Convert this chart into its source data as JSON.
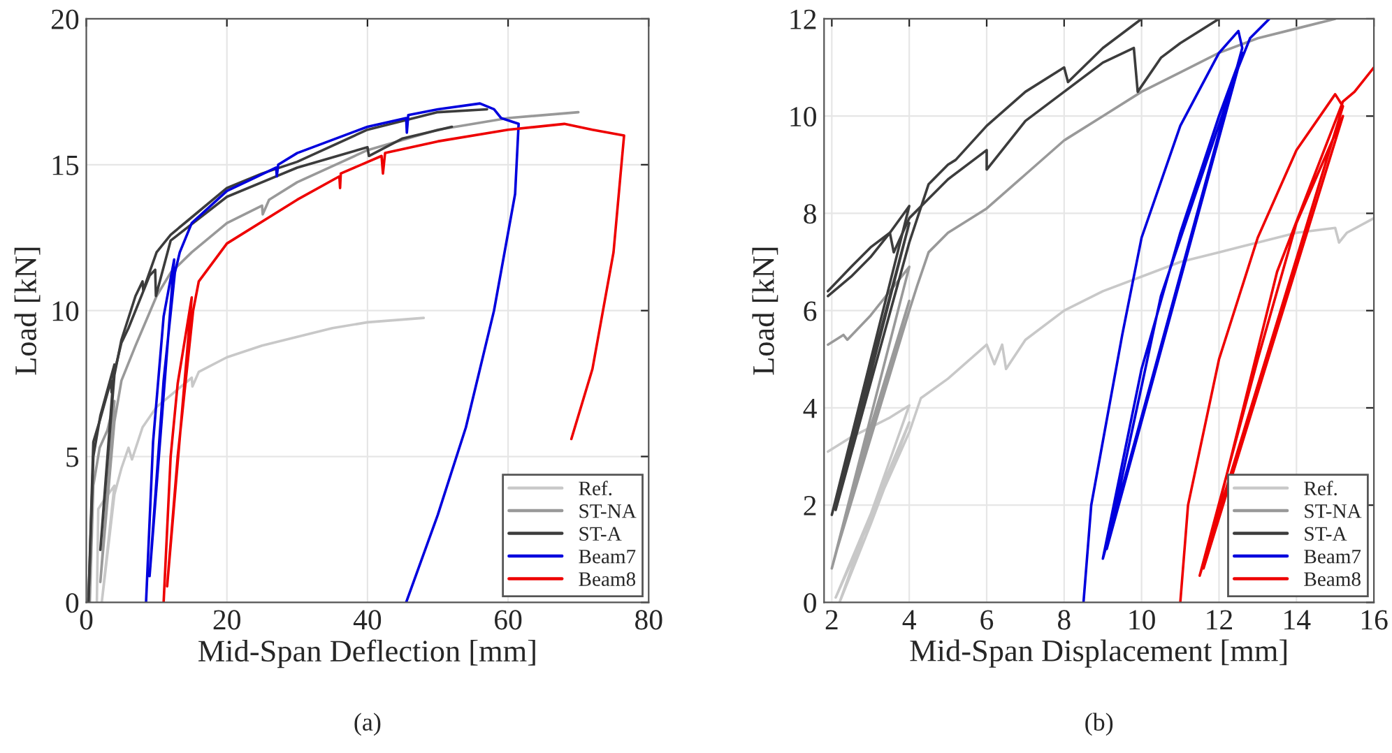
{
  "chart_data": [
    {
      "type": "line",
      "xlabel": "Mid-Span Deflection [mm]",
      "ylabel": "Load [kN]",
      "annotations": [
        "(a)"
      ],
      "xlim": [
        0,
        80
      ],
      "ylim": [
        0,
        20
      ],
      "xticks": [
        0,
        20,
        40,
        60,
        80
      ],
      "yticks": [
        0,
        5,
        10,
        15,
        20
      ],
      "grid": true,
      "legend": "bottom right",
      "series": [
        {
          "name": "Ref.",
          "color": "#c8c8c8",
          "x": [
            1.5,
            1.7,
            2.5,
            4,
            2.2,
            4,
            5,
            6,
            6.5,
            8,
            10,
            15,
            15.1,
            16,
            20,
            25,
            30,
            35,
            40,
            48
          ],
          "values": [
            0,
            3.2,
            3.5,
            4,
            0,
            3.7,
            4.6,
            5.3,
            4.9,
            6,
            6.7,
            7.7,
            7.4,
            7.9,
            8.4,
            8.8,
            9.1,
            9.4,
            9.6,
            9.75
          ]
        },
        {
          "name": "ST-NA",
          "color": "#999999",
          "x": [
            0.5,
            1,
            1.9,
            3,
            4,
            2,
            4,
            5,
            7,
            10,
            12,
            15,
            20,
            25,
            25.1,
            26,
            30,
            40,
            50,
            60,
            70
          ],
          "values": [
            0,
            4,
            5.3,
            5.9,
            6.9,
            0.7,
            6.2,
            7.6,
            8.8,
            10.5,
            11.3,
            12,
            13,
            13.6,
            13.3,
            13.8,
            14.4,
            15.5,
            16.2,
            16.6,
            16.8
          ]
        },
        {
          "name": "ST-A",
          "color": "#3c3c3c",
          "x": [
            0.3,
            1,
            2,
            4,
            2,
            4,
            5,
            7,
            8,
            8.1,
            10,
            12,
            15,
            20,
            25,
            30,
            40,
            50,
            57
          ],
          "values": [
            0,
            5,
            6.4,
            8.15,
            1.8,
            7.8,
            9,
            10.5,
            11,
            10.7,
            12,
            12.6,
            13.2,
            14.2,
            14.7,
            15.1,
            16.2,
            16.8,
            16.9
          ]
        },
        {
          "color": "#3c3c3c",
          "x": [
            0.3,
            1,
            2,
            3.5,
            3.6,
            4,
            5,
            6,
            9,
            9.8,
            9.9,
            12,
            20,
            30,
            40,
            40.2,
            45,
            52
          ],
          "values": [
            0,
            5.5,
            6.3,
            7.6,
            7.2,
            7.9,
            8.9,
            9.4,
            11.2,
            11.4,
            10.5,
            12.4,
            13.9,
            14.9,
            15.6,
            15.3,
            15.9,
            16.3
          ]
        },
        {
          "name": "Beam7",
          "color": "#0000dd",
          "x": [
            8.5,
            9.5,
            11,
            12.5,
            9,
            11,
            12.6,
            13.3,
            15,
            20,
            27,
            27.1,
            27.3,
            30,
            40,
            45.5,
            45.6,
            45.8,
            50,
            56,
            58,
            59,
            61.5,
            61,
            58,
            54,
            50,
            45.5
          ],
          "values": [
            0,
            5.5,
            9.8,
            11.75,
            0.9,
            7.6,
            11.3,
            12,
            13,
            14.1,
            14.9,
            14.6,
            15,
            15.4,
            16.3,
            16.6,
            16.1,
            16.7,
            16.9,
            17.1,
            16.9,
            16.6,
            16.4,
            14,
            10,
            6,
            3,
            0
          ]
        },
        {
          "name": "Beam8",
          "color": "#ee0000",
          "x": [
            11,
            12,
            13,
            15,
            11.5,
            13,
            15.2,
            16,
            20,
            30,
            36,
            36.1,
            36.2,
            42,
            42.2,
            42.5,
            50,
            60,
            68,
            72,
            76.5,
            75,
            72,
            69
          ],
          "values": [
            0,
            5,
            7.5,
            10.45,
            0.55,
            5,
            10,
            11,
            12.3,
            13.8,
            14.6,
            14.2,
            14.7,
            15.3,
            14.7,
            15.4,
            15.8,
            16.2,
            16.4,
            16.2,
            16,
            12,
            8,
            5.6
          ]
        }
      ]
    },
    {
      "type": "line",
      "xlabel": "Mid-Span Displacement [mm]",
      "ylabel": "Load [kN]",
      "annotations": [
        "(b)"
      ],
      "xlim": [
        1.8,
        16
      ],
      "ylim": [
        0,
        12
      ],
      "xticks": [
        2,
        4,
        6,
        8,
        10,
        12,
        14,
        16
      ],
      "yticks": [
        0,
        2,
        4,
        6,
        8,
        10,
        12
      ],
      "grid": true,
      "legend": "bottom right",
      "series": [
        {
          "name": "Ref.",
          "color": "#c8c8c8",
          "x": [
            1.9,
            2.5,
            3,
            3.5,
            4,
            2.2,
            3,
            4,
            2.1,
            4,
            4.3,
            5,
            6,
            6.2,
            6.4,
            6.5,
            7,
            8,
            9,
            10,
            11,
            12,
            13,
            14,
            15,
            15.1,
            15.3,
            16
          ],
          "values": [
            3.1,
            3.4,
            3.6,
            3.8,
            4.05,
            0,
            1.6,
            3.7,
            0.1,
            3.5,
            4.2,
            4.6,
            5.3,
            4.9,
            5.3,
            4.8,
            5.4,
            6,
            6.4,
            6.7,
            7,
            7.2,
            7.4,
            7.6,
            7.7,
            7.4,
            7.6,
            7.9
          ]
        },
        {
          "name": "ST-NA",
          "color": "#999999",
          "x": [
            1.9,
            2.3,
            2.4,
            3,
            3.5,
            4,
            2,
            3,
            4,
            2.1,
            4,
            4.2,
            4.5,
            5,
            6,
            7,
            8,
            9,
            10,
            11,
            12,
            13,
            14,
            15
          ],
          "values": [
            5.3,
            5.5,
            5.4,
            5.9,
            6.4,
            6.9,
            0.7,
            3.6,
            6.2,
            1,
            6,
            6.5,
            7.2,
            7.6,
            8.1,
            8.8,
            9.5,
            10,
            10.5,
            10.9,
            11.3,
            11.6,
            11.8,
            12
          ]
        },
        {
          "name": "ST-A",
          "color": "#3c3c3c",
          "x": [
            1.9,
            2.5,
            3,
            3.5,
            4,
            2,
            3,
            4,
            2.1,
            4,
            4.5,
            5,
            5.2,
            6,
            7,
            8,
            8.1,
            9,
            10
          ],
          "values": [
            6.4,
            6.9,
            7.3,
            7.6,
            8.15,
            1.8,
            4.8,
            7.8,
            1.9,
            7.4,
            8.6,
            9,
            9.1,
            9.8,
            10.5,
            11,
            10.7,
            11.4,
            12
          ]
        },
        {
          "color": "#3c3c3c",
          "x": [
            1.9,
            2.5,
            3,
            3.5,
            3.6,
            4,
            4.5,
            5,
            6,
            6,
            7,
            8,
            9,
            9.8,
            9.9,
            10.5,
            11,
            12
          ],
          "values": [
            6.3,
            6.7,
            7.1,
            7.6,
            7.2,
            7.9,
            8.3,
            8.7,
            9.3,
            8.9,
            9.9,
            10.5,
            11.1,
            11.4,
            10.5,
            11.2,
            11.5,
            12
          ]
        },
        {
          "name": "Beam7",
          "color": "#0000dd",
          "x": [
            8.5,
            8.7,
            9.5,
            10,
            11,
            12,
            12.5,
            12.6,
            9,
            10,
            11,
            12,
            12.6,
            9.1,
            10.5,
            12.5,
            12.8,
            13.3
          ],
          "values": [
            0,
            2,
            5.5,
            7.5,
            9.8,
            11.3,
            11.75,
            11.4,
            0.9,
            4.8,
            7.6,
            10,
            11.3,
            1.1,
            6.3,
            11,
            11.6,
            12
          ]
        },
        {
          "name": "Beam8",
          "color": "#ee0000",
          "x": [
            11,
            11.2,
            12,
            13,
            14,
            15,
            15.2,
            11.5,
            13,
            14,
            15.2,
            11.6,
            13.5,
            15.2,
            15.5,
            16
          ],
          "values": [
            0,
            2,
            5,
            7.5,
            9.3,
            10.45,
            10.2,
            0.55,
            5,
            7.8,
            10,
            0.7,
            6.8,
            10.3,
            10.5,
            11
          ]
        }
      ]
    }
  ]
}
